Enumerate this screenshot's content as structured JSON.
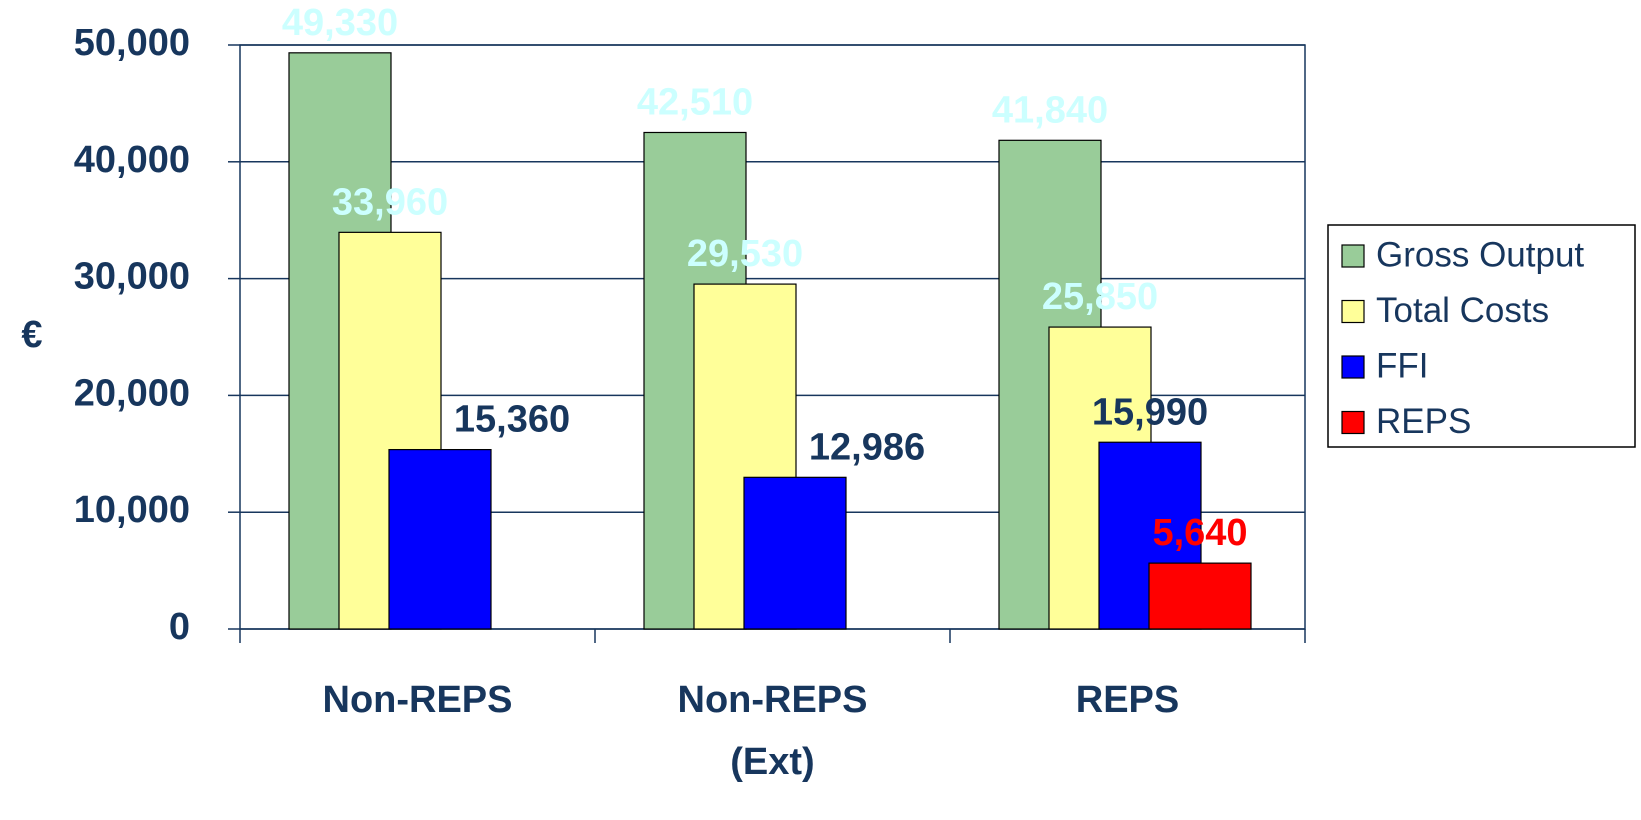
{
  "chart_data": {
    "type": "bar",
    "y_label": "€",
    "categories": [
      "Non-REPS",
      "Non-REPS (Ext)",
      "REPS"
    ],
    "series": [
      {
        "name": "Gross Output",
        "color": "#99cc99",
        "label_color": "#ccffff",
        "values": [
          49330,
          42510,
          41840
        ],
        "value_labels": [
          "49,330",
          "42,510",
          "41,840"
        ]
      },
      {
        "name": "Total Costs",
        "color": "#ffff99",
        "label_color": "#ccffff",
        "values": [
          33960,
          29530,
          25850
        ],
        "value_labels": [
          "33,960",
          "29,530",
          "25,850"
        ]
      },
      {
        "name": "FFI",
        "color": "#0000ff",
        "label_color": "#17365d",
        "values": [
          15360,
          12986,
          15990
        ],
        "value_labels": [
          "15,360",
          "12,986",
          "15,990"
        ]
      },
      {
        "name": "REPS",
        "color": "#ff0000",
        "label_color": "#ff0000",
        "values": [
          null,
          null,
          5640
        ],
        "value_labels": [
          null,
          null,
          "5,640"
        ]
      }
    ],
    "ylim": [
      0,
      50000
    ],
    "yticks": [
      {
        "value": 0,
        "label": "0"
      },
      {
        "value": 10000,
        "label": "10,000"
      },
      {
        "value": 20000,
        "label": "20,000"
      },
      {
        "value": 30000,
        "label": "30,000"
      },
      {
        "value": 40000,
        "label": "40,000"
      },
      {
        "value": 50000,
        "label": "50,000"
      }
    ],
    "grid": true,
    "legend": "right"
  }
}
